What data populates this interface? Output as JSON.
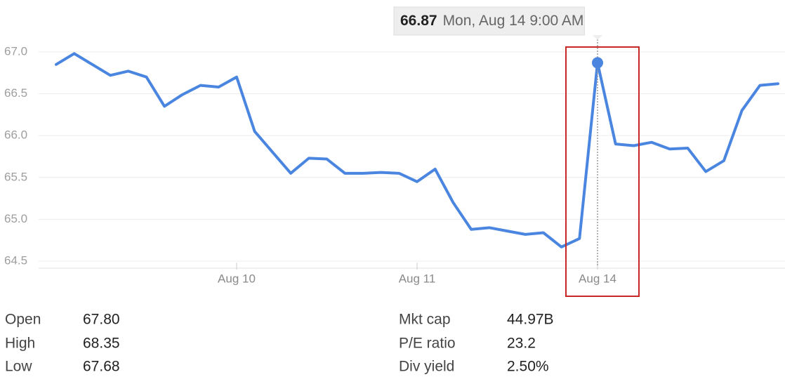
{
  "chart_data": {
    "type": "line",
    "categories": [
      null,
      null,
      null,
      null,
      null,
      null,
      null,
      null,
      null,
      null,
      "Aug 10",
      null,
      null,
      null,
      null,
      null,
      null,
      null,
      null,
      null,
      "Aug 11",
      null,
      null,
      null,
      null,
      null,
      null,
      null,
      null,
      null,
      "Aug 14",
      null,
      null,
      null,
      null,
      null,
      null,
      null,
      null,
      null,
      null
    ],
    "series": [
      {
        "color": "#4a86e0",
        "values": [
          66.85,
          66.98,
          66.85,
          66.72,
          66.77,
          66.7,
          66.35,
          66.49,
          66.6,
          66.58,
          66.7,
          66.05,
          65.8,
          65.55,
          65.73,
          65.72,
          65.55,
          65.55,
          65.56,
          65.55,
          65.45,
          65.6,
          65.2,
          64.88,
          64.9,
          64.86,
          64.82,
          64.84,
          64.67,
          64.77,
          66.87,
          65.9,
          65.88,
          65.92,
          65.84,
          65.85,
          65.57,
          65.7,
          66.3,
          66.6,
          66.62
        ]
      }
    ],
    "ylim": [
      64.45,
      67.1
    ],
    "yticks": [
      64.5,
      {
        "value": 65,
        "label": "65.0"
      },
      65.5,
      {
        "value": 66,
        "label": "66.0"
      },
      66.5,
      {
        "value": 67,
        "label": "67.0"
      }
    ],
    "grid": true,
    "tooltip_index": 30,
    "tooltip_label": "Mon, Aug 14 9:00 AM"
  },
  "stats": [
    [
      {
        "label": "Open",
        "value": "67.80"
      },
      {
        "label": "High",
        "value": "68.35"
      },
      {
        "label": "Low",
        "value": "67.68"
      }
    ],
    [
      {
        "label": "Mkt cap",
        "value": "44.97B"
      },
      {
        "label": "P/E ratio",
        "value": "23.2"
      },
      {
        "label": "Div yield",
        "value": "2.50%"
      }
    ]
  ]
}
